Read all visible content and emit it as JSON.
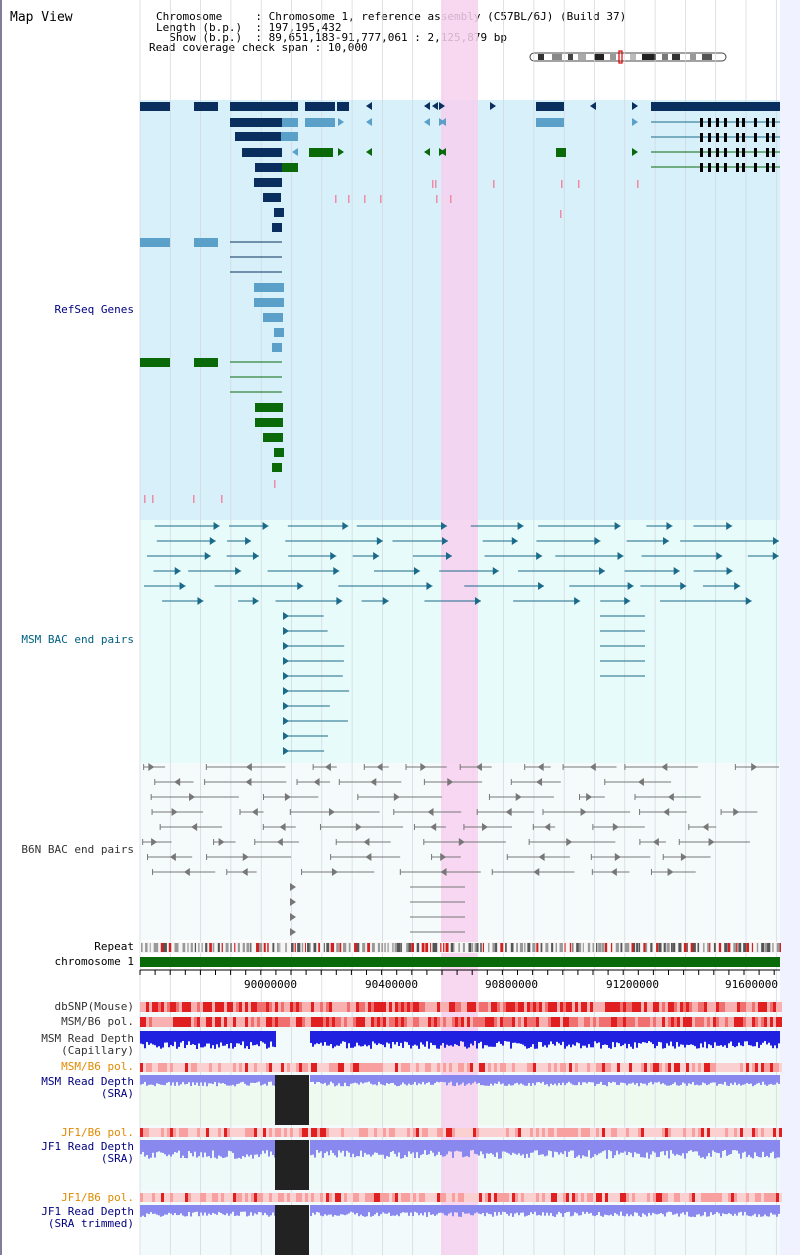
{
  "app": {
    "title": "Map View"
  },
  "header": {
    "rows": [
      {
        "label": "Chromosome     ",
        "value": "Chromosome 1, reference assembly (C57BL/6J) (Build 37)"
      },
      {
        "label": "Length (b.p.)  ",
        "value": "197,195,432"
      },
      {
        "label": "  Show (b.p.)  ",
        "value": "89,651,183-91,777,061 : 2,125,879 bp"
      },
      {
        "label": "Read coverage check span ",
        "value": "10,000"
      }
    ]
  },
  "tracks": {
    "refseq": {
      "label": "RefSeq Genes"
    },
    "msm_bac": {
      "label": "MSM BAC end pairs"
    },
    "b6n_bac": {
      "label": "B6N BAC end pairs"
    },
    "repeat": {
      "label": "Repeat"
    },
    "chromosome": {
      "label": "chromosome 1"
    },
    "dbsnp": {
      "label": "dbSNP(Mouse)"
    },
    "msm_b6_pol_1": {
      "label": "MSM/B6 pol."
    },
    "msm_depth_cap": {
      "label1": "MSM Read Depth",
      "label2": "(Capillary)"
    },
    "msm_b6_pol_2": {
      "label": "MSM/B6 pol."
    },
    "msm_depth_sra": {
      "label1": "MSM Read Depth",
      "label2": "(SRA)"
    },
    "jf1_b6_pol_1": {
      "label": "JF1/B6 pol."
    },
    "jf1_depth_sra": {
      "label1": "JF1 Read Depth",
      "label2": "(SRA)"
    },
    "jf1_b6_pol_2": {
      "label": "JF1/B6 pol."
    },
    "jf1_depth_trim": {
      "label1": "JF1 Read Depth",
      "label2": "(SRA trimmed)"
    }
  },
  "axis": {
    "ticks": [
      "90000000",
      "90400000",
      "90800000",
      "91200000",
      "91600000"
    ]
  },
  "colors": {
    "refseq_bg": "#d8f0fa",
    "bac_bg": "#e8fbfb",
    "highlight": "#f7d0ee",
    "gene_dark": "#0a2f5e",
    "gene_light": "#5aa0c8",
    "gene_green": "#0a6a0a",
    "msm_pair": "#1a6a8a",
    "b6n_pair": "#777777",
    "chromosome": "#0a6a0a",
    "depth_blue": "#2020e0",
    "depth_light": "#8888ee",
    "msm_label": "#000080",
    "pol_label": "#e08a00",
    "refseq_label": "#000080",
    "msm_bac_label": "#006080",
    "b6n_label": "#333333"
  },
  "icons": [
    "chromosome-ideogram-icon"
  ]
}
